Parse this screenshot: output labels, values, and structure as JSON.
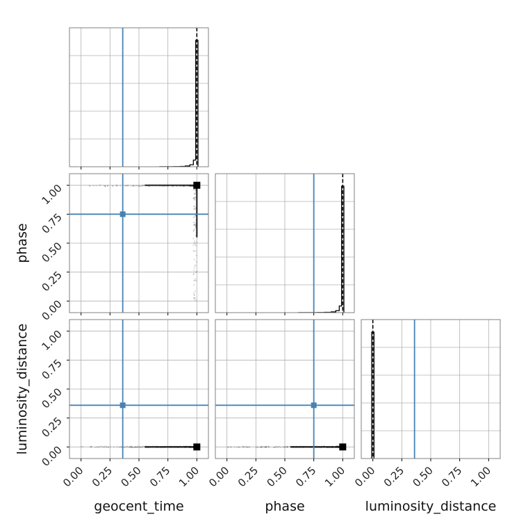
{
  "chart_data": {
    "type": "corner",
    "parameters": [
      "geocent_time",
      "phase",
      "luminosity_distance"
    ],
    "injection_color": "#4682b4",
    "hist_color": "#000000",
    "grid": true,
    "injected_values": {
      "geocent_time": 0.36,
      "phase": 0.75,
      "luminosity_distance": 0.36
    },
    "posterior_median": {
      "geocent_time": 1.0,
      "phase": 1.0,
      "luminosity_distance": 0.0
    },
    "axis_ranges": {
      "geocent_time": [
        -0.1,
        1.1
      ],
      "phase": [
        -0.1,
        1.1
      ],
      "luminosity_distance": [
        -0.1,
        1.1
      ]
    },
    "tick_values": [
      0.0,
      0.25,
      0.5,
      0.75,
      1.0
    ],
    "tick_labels": [
      "0.00",
      "0.25",
      "0.50",
      "0.75",
      "1.00"
    ],
    "histograms": {
      "geocent_time": {
        "bin_edges": [
          0.68,
          0.74,
          0.8,
          0.86,
          0.9,
          0.94,
          0.97,
          0.99,
          1.01
        ],
        "counts": [
          0.1,
          0.2,
          0.4,
          0.9,
          2.2,
          6.0,
          20.0,
          380.0
        ]
      },
      "phase": {
        "bin_edges": [
          0.62,
          0.7,
          0.78,
          0.84,
          0.9,
          0.94,
          0.97,
          0.99,
          1.01
        ],
        "counts": [
          0.1,
          0.2,
          0.4,
          0.9,
          2.2,
          6.0,
          20.0,
          380.0
        ]
      },
      "luminosity_distance": {
        "bin_edges": [
          -0.01,
          0.01
        ],
        "counts": [
          1.0
        ]
      }
    },
    "panels": [
      {
        "row": "geocent_time",
        "col": "geocent_time",
        "kind": "hist",
        "xlabel": "",
        "ylabel": ""
      },
      {
        "row": "phase",
        "col": "geocent_time",
        "kind": "scatter",
        "ylabel": "phase"
      },
      {
        "row": "phase",
        "col": "phase",
        "kind": "hist"
      },
      {
        "row": "luminosity_distance",
        "col": "geocent_time",
        "kind": "scatter",
        "xlabel": "geocent_time",
        "ylabel": "luminosity_distance"
      },
      {
        "row": "luminosity_distance",
        "col": "phase",
        "kind": "scatter",
        "xlabel": "phase"
      },
      {
        "row": "luminosity_distance",
        "col": "luminosity_distance",
        "kind": "hist",
        "xlabel": "luminosity_distance"
      }
    ]
  }
}
